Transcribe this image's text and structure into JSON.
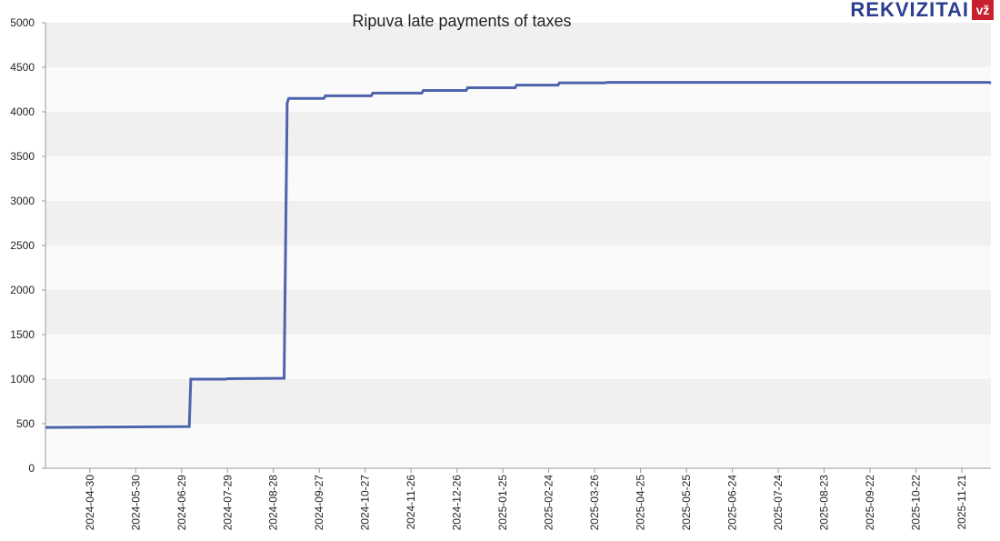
{
  "logo": {
    "text": "REKVIZITAI",
    "badge": "vž"
  },
  "chart_data": {
    "type": "line",
    "title": "Ripuva late payments of taxes",
    "x": [
      "2024-04-01",
      "2024-07-04",
      "2024-07-05",
      "2024-07-28",
      "2024-07-29",
      "2024-09-04",
      "2024-09-06",
      "2024-09-07",
      "2024-09-30",
      "2024-10-01",
      "2024-10-31",
      "2024-11-01",
      "2024-12-03",
      "2024-12-04",
      "2025-01-01",
      "2025-01-02",
      "2025-02-02",
      "2025-02-03",
      "2025-03-02",
      "2025-03-03",
      "2025-04-02",
      "2025-04-03",
      "2025-12-09",
      "2025-12-10"
    ],
    "values": [
      458,
      468,
      1000,
      1000,
      1005,
      1010,
      4100,
      4150,
      4150,
      4180,
      4180,
      4210,
      4210,
      4240,
      4240,
      4270,
      4270,
      4300,
      4300,
      4325,
      4325,
      4330,
      4330,
      4320
    ],
    "color": "#4f63ad",
    "xlim": [
      "2024-04-01",
      "2025-12-10"
    ],
    "xticks": [
      "2024-04-30",
      "2024-05-30",
      "2024-06-29",
      "2024-07-29",
      "2024-08-28",
      "2024-09-27",
      "2024-10-27",
      "2024-11-26",
      "2024-12-26",
      "2025-01-25",
      "2025-02-24",
      "2025-03-26",
      "2025-04-25",
      "2025-05-25",
      "2025-06-24",
      "2025-07-24",
      "2025-08-23",
      "2025-09-22",
      "2025-10-22",
      "2025-11-21"
    ],
    "ylim": [
      0,
      5000
    ],
    "yticks": [
      0,
      500,
      1000,
      1500,
      2000,
      2500,
      3000,
      3500,
      4000,
      4500,
      5000
    ],
    "grid": "bands"
  }
}
